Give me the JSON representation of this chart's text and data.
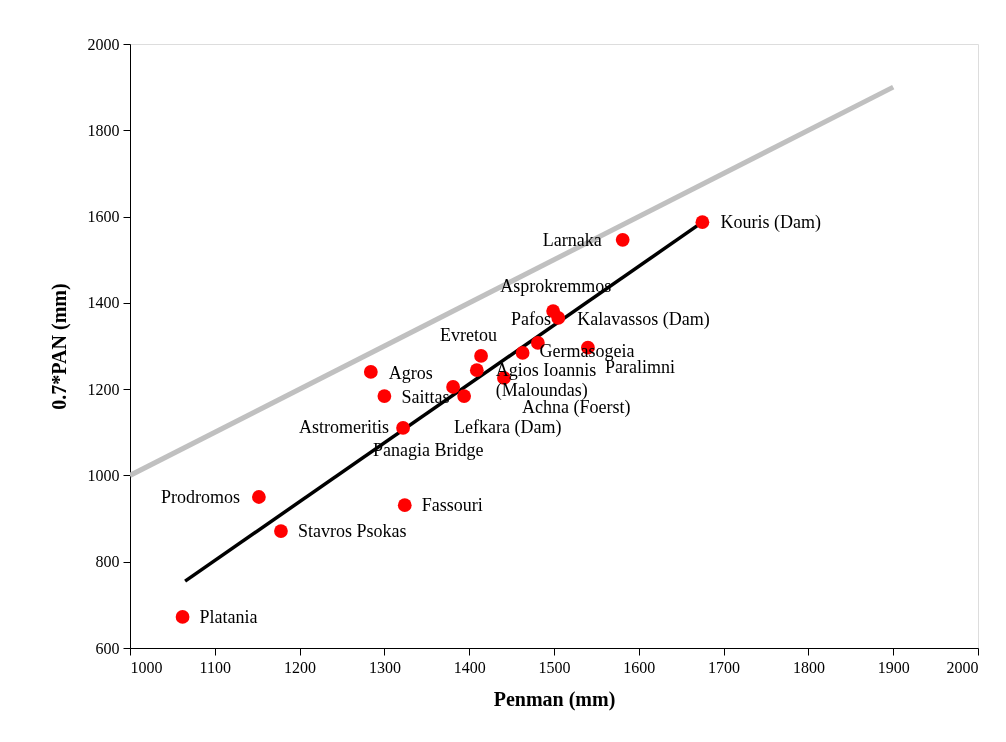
{
  "chart_data": {
    "type": "scatter",
    "xlabel": "Penman (mm)",
    "ylabel": "0.7*PAN (mm)",
    "xlim": [
      1000,
      2000
    ],
    "xticks": [
      1000,
      1100,
      1200,
      1300,
      1400,
      1500,
      1600,
      1700,
      1800,
      1900,
      2000
    ],
    "ylim": [
      600,
      2000
    ],
    "yticks": [
      600,
      800,
      1000,
      1200,
      1400,
      1600,
      1800,
      2000
    ],
    "grid": false,
    "marker": "circle",
    "series": [
      {
        "type": "line",
        "color": "#c0c0c0",
        "marker": "none",
        "x": [
          1000,
          1900
        ],
        "values": [
          1000,
          1900
        ]
      },
      {
        "type": "line",
        "color": "#000000",
        "marker": "none",
        "x": [
          1065,
          1675
        ],
        "values": [
          755,
          1587
        ]
      },
      {
        "color": "#ff0000",
        "x": [
          1675,
          1581,
          1499,
          1505,
          1481,
          1463,
          1540,
          1414,
          1409,
          1441,
          1284,
          1300,
          1381,
          1394,
          1322,
          1152,
          1324,
          1178,
          1062
        ],
        "values": [
          1587,
          1546,
          1381,
          1365,
          1307,
          1284,
          1296,
          1277,
          1244,
          1226,
          1240,
          1184,
          1205,
          1184,
          1110,
          950,
          931,
          871,
          672
        ]
      }
    ],
    "annotations": [
      {
        "text": "Kouris (Dam)",
        "x": 1675,
        "y": 1587
      },
      {
        "text": "Larnaka",
        "x": 1581,
        "y": 1546
      },
      {
        "text": "Asprokremmos",
        "x": 1499,
        "y": 1381
      },
      {
        "text": "Kalavassos (Dam)",
        "x": 1505,
        "y": 1365
      },
      {
        "text": "Pafos",
        "x": 1481,
        "y": 1307
      },
      {
        "text": "Germasogeia",
        "x": 1463,
        "y": 1284
      },
      {
        "text": "Paralimni",
        "x": 1540,
        "y": 1296
      },
      {
        "text": "Evretou",
        "x": 1414,
        "y": 1277
      },
      {
        "text": "Agios Ioannis\n(Maloundas)",
        "x": 1409,
        "y": 1244
      },
      {
        "text": "Achna (Foerst)",
        "x": 1441,
        "y": 1226
      },
      {
        "text": "Agros",
        "x": 1284,
        "y": 1240
      },
      {
        "text": "Saittas",
        "x": 1300,
        "y": 1184
      },
      {
        "text": "Panagia Bridge",
        "x": 1381,
        "y": 1205
      },
      {
        "text": "Lefkara (Dam)",
        "x": 1394,
        "y": 1184
      },
      {
        "text": "Astromeritis",
        "x": 1322,
        "y": 1110
      },
      {
        "text": "Prodromos",
        "x": 1152,
        "y": 950
      },
      {
        "text": "Fassouri",
        "x": 1324,
        "y": 931
      },
      {
        "text": "Stavros Psokas",
        "x": 1178,
        "y": 871
      },
      {
        "text": "Platania",
        "x": 1062,
        "y": 672
      }
    ]
  }
}
